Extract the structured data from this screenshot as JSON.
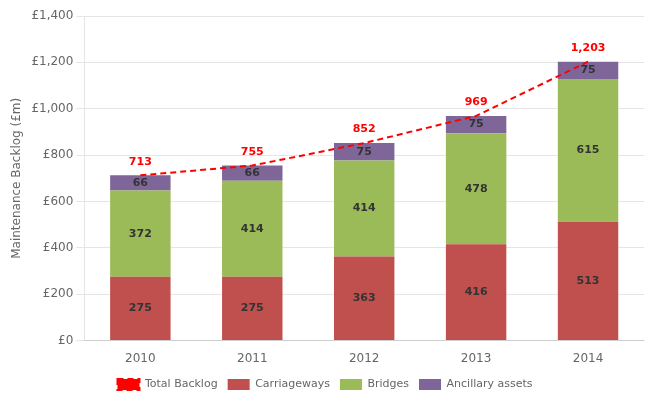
{
  "chart_data": {
    "type": "bar",
    "stacked": true,
    "categories": [
      "2010",
      "2011",
      "2012",
      "2013",
      "2014"
    ],
    "series": [
      {
        "name": "Carriageways",
        "color": "#c0504d",
        "values": [
          275,
          275,
          363,
          416,
          513
        ]
      },
      {
        "name": "Bridges",
        "color": "#9bbb59",
        "values": [
          372,
          414,
          414,
          478,
          615
        ]
      },
      {
        "name": "Ancillary assets",
        "color": "#7f6699",
        "values": [
          66,
          66,
          75,
          75,
          75
        ]
      },
      {
        "name": "Total Backlog",
        "type": "line",
        "color": "#ff0000",
        "line_style": "dashed",
        "values": [
          713,
          755,
          852,
          969,
          1203
        ],
        "value_labels": [
          "713",
          "755",
          "852",
          "969",
          "1,203"
        ]
      }
    ],
    "ylabel": "Maintenance Backlog (£m)",
    "ylim": [
      0,
      1400
    ],
    "yticks": [
      {
        "value": 0,
        "label": "£0"
      },
      {
        "value": 200,
        "label": "£200"
      },
      {
        "value": 400,
        "label": "£400"
      },
      {
        "value": 600,
        "label": "£600"
      },
      {
        "value": 800,
        "label": "£800"
      },
      {
        "value": 1000,
        "label": "£1,000"
      },
      {
        "value": 1200,
        "label": "£1,200"
      },
      {
        "value": 1400,
        "label": "£1,400"
      }
    ],
    "grid": true,
    "legend": "bottom",
    "data_labels": true
  }
}
